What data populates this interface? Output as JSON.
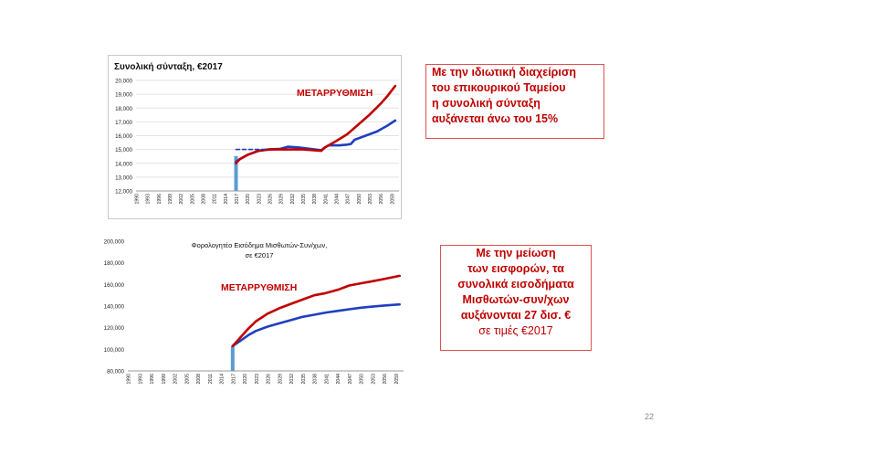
{
  "slide": {
    "page_number": "22"
  },
  "callout_1": {
    "lines": [
      "Με την ιδιωτική διαχείριση",
      "του επικουρικού Ταμείου",
      "η συνολική σύνταξη",
      "αυξάνεται άνω του 15%"
    ]
  },
  "callout_2": {
    "lines": [
      "Με την μείωση",
      "των εισφορών, τα",
      "συνολικά εισοδήματα",
      "Μισθωτών-συν/χων",
      "αυξάνονται 27 δισ. €"
    ],
    "note": "σε τιμές €2017"
  },
  "colors": {
    "reform": "#c00000",
    "baseline": "#1f3fbf",
    "marker": "#5b9bd5"
  },
  "chart_data": [
    {
      "type": "line",
      "title": "Συνολική σύνταξη, €2017",
      "annotation": "ΜΕΤΑΡΡΥΘΜΙΣΗ",
      "ylim": [
        12000,
        20000
      ],
      "y_ticks": [
        "12,000",
        "13,000",
        "14,000",
        "15,000",
        "16,000",
        "17,000",
        "18,000",
        "19,000",
        "20,000"
      ],
      "x_ticks": [
        "1990",
        "1993",
        "1996",
        "1999",
        "2002",
        "2005",
        "2008",
        "2011",
        "2014",
        "2017",
        "2020",
        "2023",
        "2026",
        "2029",
        "2032",
        "2035",
        "2038",
        "2041",
        "2044",
        "2047",
        "2050",
        "2053",
        "2056",
        "2059"
      ],
      "xlim": [
        1990,
        2061
      ],
      "marker_year": 2017,
      "series": [
        {
          "name": "baseline",
          "color": "#1f3fbf",
          "x": [
            2017,
            2018,
            2020,
            2023,
            2026,
            2029,
            2031,
            2034,
            2037,
            2040,
            2041,
            2042,
            2045,
            2047,
            2048,
            2049,
            2052,
            2055,
            2058,
            2060
          ],
          "y": [
            14100,
            14300,
            14600,
            14900,
            15000,
            15050,
            15200,
            15150,
            15050,
            14950,
            15150,
            15300,
            15300,
            15350,
            15400,
            15700,
            16000,
            16300,
            16750,
            17100
          ]
        },
        {
          "name": "reform",
          "color": "#c00000",
          "x": [
            2017,
            2018,
            2020,
            2023,
            2026,
            2029,
            2032,
            2035,
            2038,
            2040,
            2041,
            2044,
            2047,
            2050,
            2053,
            2056,
            2058,
            2060
          ],
          "y": [
            14000,
            14300,
            14600,
            14900,
            15000,
            15000,
            15000,
            15000,
            14950,
            14900,
            15150,
            15600,
            16100,
            16800,
            17500,
            18300,
            18900,
            19600
          ]
        },
        {
          "name": "reform-level",
          "style": "dashed",
          "color": "#1f3fbf",
          "x": [
            2017,
            2020,
            2025
          ],
          "y": [
            15000,
            15000,
            15000
          ]
        }
      ]
    },
    {
      "type": "line",
      "title": "Φορολογητέο Εισόδημα Μισθωτών-Συν/χων,",
      "subtitle": "σε €2017",
      "annotation": "ΜΕΤΑΡΡΥΘΜΙΣΗ",
      "ylim": [
        80000,
        200000
      ],
      "y_ticks": [
        "80,000",
        "100,000",
        "120,000",
        "140,000",
        "160,000",
        "180,000",
        "200,000"
      ],
      "x_ticks": [
        "1990",
        "1993",
        "1996",
        "1999",
        "2002",
        "2005",
        "2008",
        "2011",
        "2014",
        "2017",
        "2020",
        "2023",
        "2026",
        "2029",
        "2032",
        "2035",
        "2038",
        "2041",
        "2044",
        "2047",
        "2050",
        "2053",
        "2056",
        "2059"
      ],
      "xlim": [
        1990,
        2061
      ],
      "marker_year": 2017,
      "series": [
        {
          "name": "baseline",
          "color": "#1f3fbf",
          "x": [
            2017,
            2019,
            2021,
            2023,
            2026,
            2029,
            2032,
            2035,
            2038,
            2041,
            2044,
            2047,
            2050,
            2053,
            2056,
            2060
          ],
          "y": [
            103000,
            108000,
            113000,
            117000,
            121000,
            124000,
            127000,
            130000,
            132000,
            134000,
            135500,
            137000,
            138500,
            139500,
            140500,
            141500
          ]
        },
        {
          "name": "reform",
          "color": "#c00000",
          "x": [
            2017,
            2019,
            2021,
            2023,
            2026,
            2029,
            2032,
            2035,
            2038,
            2041,
            2044,
            2047,
            2050,
            2053,
            2056,
            2060
          ],
          "y": [
            103000,
            111000,
            119000,
            126000,
            133000,
            138000,
            142000,
            146000,
            150000,
            152000,
            155000,
            159000,
            161000,
            163000,
            165000,
            168000
          ]
        }
      ]
    }
  ]
}
